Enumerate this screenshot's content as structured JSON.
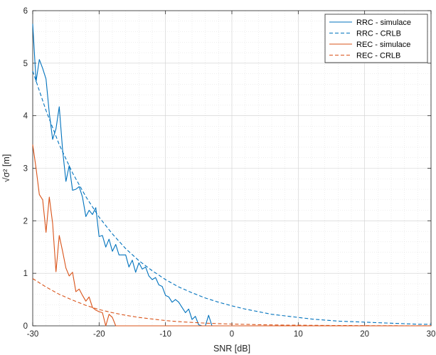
{
  "chart_data": {
    "type": "line",
    "title": "",
    "xlabel": "SNR [dB]",
    "ylabel": "√σ² [m]",
    "xlim": [
      -30,
      30
    ],
    "ylim": [
      0,
      6
    ],
    "xticks": [
      -30,
      -20,
      -10,
      0,
      10,
      20,
      30
    ],
    "yticks": [
      0,
      1,
      2,
      3,
      4,
      5,
      6
    ],
    "grid": true,
    "minor_grid": true,
    "legend_position": "top-right",
    "series": [
      {
        "name": "RRC - simulace",
        "color": "#0072BD",
        "style": "solid",
        "x": [
          -30,
          -29.5,
          -29,
          -28.5,
          -28,
          -27.5,
          -27,
          -26.5,
          -26,
          -25.5,
          -25,
          -24.5,
          -24,
          -23.5,
          -23,
          -22.5,
          -22,
          -21.5,
          -21,
          -20.5,
          -20,
          -19.5,
          -19,
          -18.5,
          -18,
          -17.5,
          -17,
          -16.5,
          -16,
          -15.5,
          -15,
          -14.5,
          -14,
          -13.5,
          -13,
          -12.5,
          -12,
          -11.5,
          -11,
          -10.5,
          -10,
          -9.5,
          -9,
          -8.5,
          -8,
          -7.5,
          -7,
          -6.5,
          -6,
          -5.5,
          -5,
          -4.5,
          -4,
          -3.5,
          -3,
          -2.5,
          -2,
          0,
          10,
          20,
          30
        ],
        "y": [
          5.75,
          4.65,
          5.07,
          4.9,
          4.7,
          4.05,
          3.55,
          3.75,
          4.17,
          3.35,
          2.75,
          3.05,
          2.58,
          2.6,
          2.65,
          2.45,
          2.08,
          2.2,
          2.12,
          2.25,
          1.7,
          1.72,
          1.5,
          1.65,
          1.42,
          1.55,
          1.35,
          1.35,
          1.35,
          1.12,
          1.25,
          1.02,
          1.2,
          1.08,
          1.12,
          0.95,
          0.88,
          0.92,
          0.78,
          0.75,
          0.58,
          0.55,
          0.45,
          0.5,
          0.45,
          0.35,
          0.25,
          0.32,
          0.12,
          0.18,
          0.02,
          0,
          0,
          0.2,
          0,
          0,
          0,
          0,
          0,
          0,
          0
        ]
      },
      {
        "name": "RRC - CRLB",
        "color": "#0072BD",
        "style": "dashed",
        "x": [
          -30,
          -28,
          -26,
          -24,
          -22,
          -20,
          -18,
          -16,
          -14,
          -12,
          -10,
          -8,
          -6,
          -4,
          -2,
          0,
          2,
          4,
          6,
          8,
          10,
          12,
          14,
          16,
          18,
          20,
          22,
          24,
          26,
          28,
          30
        ],
        "y": [
          4.85,
          4.1,
          3.45,
          2.91,
          2.46,
          2.07,
          1.75,
          1.47,
          1.24,
          1.05,
          0.88,
          0.74,
          0.63,
          0.53,
          0.45,
          0.38,
          0.32,
          0.27,
          0.22,
          0.19,
          0.16,
          0.13,
          0.11,
          0.09,
          0.08,
          0.07,
          0.06,
          0.05,
          0.04,
          0.03,
          0.03
        ]
      },
      {
        "name": "REC - simulace",
        "color": "#D95319",
        "style": "solid",
        "x": [
          -30,
          -29.5,
          -29,
          -28.5,
          -28,
          -27.5,
          -27,
          -26.5,
          -26,
          -25.5,
          -25,
          -24.5,
          -24,
          -23.5,
          -23,
          -22.5,
          -22,
          -21.5,
          -21,
          -20.5,
          -20,
          -19.5,
          -19,
          -18.5,
          -18,
          -17.5,
          -17,
          -16,
          -10,
          0,
          10,
          20,
          30
        ],
        "y": [
          3.45,
          3.0,
          2.5,
          2.4,
          1.78,
          2.45,
          1.95,
          1.03,
          1.72,
          1.42,
          1.1,
          0.95,
          1.02,
          0.65,
          0.7,
          0.58,
          0.47,
          0.55,
          0.35,
          0.3,
          0.27,
          0.25,
          0.0,
          0.22,
          0.16,
          0.0,
          0.0,
          0.0,
          0.0,
          0.0,
          0.0,
          0.0,
          0.0
        ]
      },
      {
        "name": "REC - CRLB",
        "color": "#D95319",
        "style": "dashed",
        "x": [
          -30,
          -28,
          -26,
          -24,
          -22,
          -20,
          -18,
          -16,
          -14,
          -12,
          -10,
          -8,
          -6,
          -4,
          -2,
          0,
          2,
          4,
          6,
          8,
          10,
          12,
          14,
          16,
          18,
          20,
          22,
          24,
          26,
          28,
          30
        ],
        "y": [
          0.9,
          0.74,
          0.6,
          0.49,
          0.39,
          0.31,
          0.25,
          0.2,
          0.16,
          0.13,
          0.1,
          0.08,
          0.065,
          0.052,
          0.042,
          0.034,
          0.028,
          0.022,
          0.018,
          0.014,
          0.012,
          0.01,
          0.008,
          0.006,
          0.005,
          0.004,
          0.003,
          0.003,
          0.002,
          0.002,
          0.001
        ]
      }
    ]
  }
}
